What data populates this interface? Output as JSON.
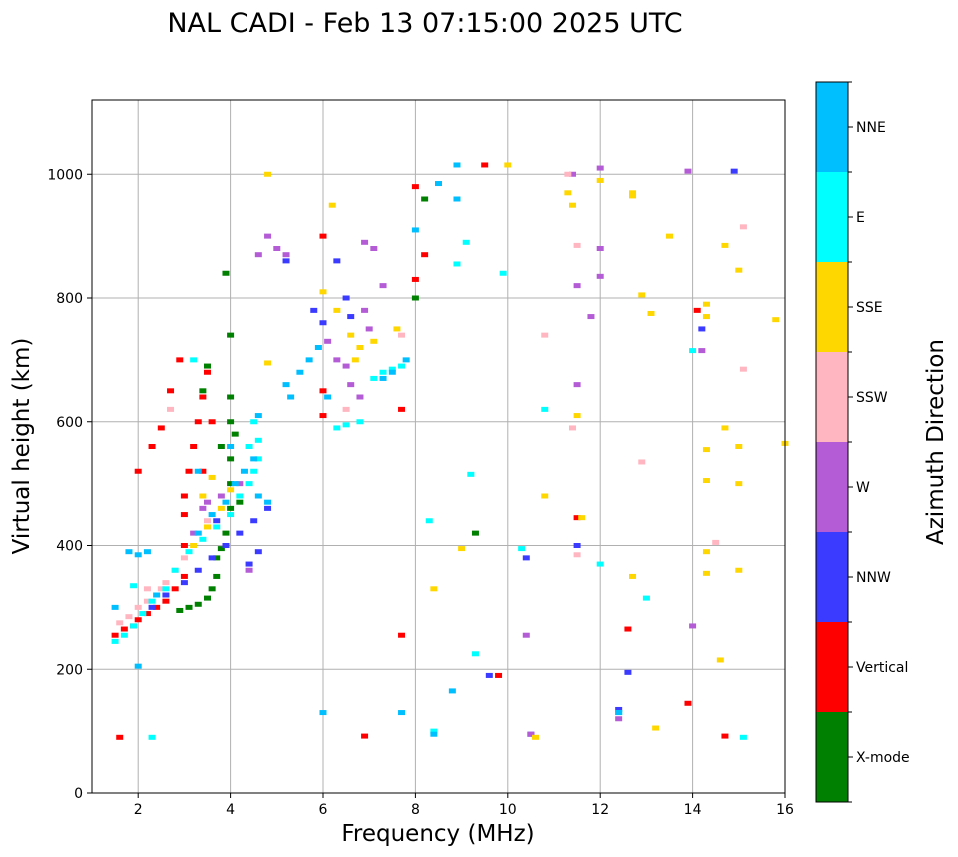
{
  "chart_data": {
    "type": "scatter",
    "title": "NAL CADI - Feb 13 07:15:00 2025 UTC",
    "xlabel": "Frequency (MHz)",
    "ylabel": "Virtual height (km)",
    "xlim": [
      1,
      16
    ],
    "ylim": [
      0,
      1120
    ],
    "xticks": [
      2,
      4,
      6,
      8,
      10,
      12,
      14,
      16
    ],
    "yticks": [
      0,
      200,
      400,
      600,
      800,
      1000
    ],
    "grid": true,
    "colorbar": {
      "label": "Azimuth Direction",
      "categories": [
        {
          "name": "X-mode",
          "color": "#008000"
        },
        {
          "name": "Vertical",
          "color": "#ff0000"
        },
        {
          "name": "NNW",
          "color": "#3b3bff"
        },
        {
          "name": "W",
          "color": "#b45cd6"
        },
        {
          "name": "SSW",
          "color": "#ffb6c1"
        },
        {
          "name": "SSE",
          "color": "#ffd700"
        },
        {
          "name": "E",
          "color": "#00ffff"
        },
        {
          "name": "NNE",
          "color": "#00bfff"
        }
      ]
    },
    "series": [
      {
        "name": "X-mode",
        "points": [
          [
            2.9,
            295
          ],
          [
            3.1,
            300
          ],
          [
            3.3,
            305
          ],
          [
            3.5,
            315
          ],
          [
            3.6,
            330
          ],
          [
            3.7,
            350
          ],
          [
            3.7,
            380
          ],
          [
            3.8,
            395
          ],
          [
            3.9,
            420
          ],
          [
            4.0,
            460
          ],
          [
            4.0,
            500
          ],
          [
            4.0,
            540
          ],
          [
            4.0,
            600
          ],
          [
            4.0,
            640
          ],
          [
            4.0,
            740
          ],
          [
            3.9,
            840
          ],
          [
            3.4,
            650
          ],
          [
            3.5,
            690
          ],
          [
            8.0,
            800
          ],
          [
            8.2,
            960
          ],
          [
            9.3,
            420
          ],
          [
            4.2,
            470
          ],
          [
            3.8,
            560
          ],
          [
            4.1,
            580
          ]
        ]
      },
      {
        "name": "Vertical",
        "points": [
          [
            1.5,
            255
          ],
          [
            1.7,
            265
          ],
          [
            1.9,
            270
          ],
          [
            2.0,
            280
          ],
          [
            2.2,
            290
          ],
          [
            2.4,
            300
          ],
          [
            2.6,
            310
          ],
          [
            2.8,
            330
          ],
          [
            3.0,
            350
          ],
          [
            3.0,
            400
          ],
          [
            3.0,
            450
          ],
          [
            3.0,
            480
          ],
          [
            3.1,
            520
          ],
          [
            3.2,
            560
          ],
          [
            3.3,
            600
          ],
          [
            3.4,
            640
          ],
          [
            3.5,
            680
          ],
          [
            2.3,
            560
          ],
          [
            2.5,
            590
          ],
          [
            2.7,
            650
          ],
          [
            2.9,
            700
          ],
          [
            1.6,
            90
          ],
          [
            6.0,
            610
          ],
          [
            6.0,
            650
          ],
          [
            6.0,
            900
          ],
          [
            7.7,
            255
          ],
          [
            7.7,
            620
          ],
          [
            8.0,
            830
          ],
          [
            8.0,
            980
          ],
          [
            8.2,
            870
          ],
          [
            9.5,
            1015
          ],
          [
            9.8,
            190
          ],
          [
            11.5,
            445
          ],
          [
            12.6,
            265
          ],
          [
            13.9,
            145
          ],
          [
            14.1,
            780
          ],
          [
            14.7,
            92
          ],
          [
            6.9,
            92
          ],
          [
            3.4,
            520
          ],
          [
            3.6,
            600
          ],
          [
            2.0,
            520
          ]
        ]
      },
      {
        "name": "NNW",
        "points": [
          [
            2.3,
            300
          ],
          [
            2.6,
            320
          ],
          [
            3.0,
            340
          ],
          [
            3.3,
            360
          ],
          [
            3.6,
            380
          ],
          [
            3.9,
            400
          ],
          [
            4.2,
            420
          ],
          [
            4.5,
            440
          ],
          [
            4.8,
            460
          ],
          [
            4.6,
            390
          ],
          [
            4.4,
            370
          ],
          [
            5.2,
            860
          ],
          [
            5.8,
            780
          ],
          [
            6.3,
            860
          ],
          [
            6.5,
            800
          ],
          [
            6.6,
            770
          ],
          [
            9.6,
            190
          ],
          [
            10.4,
            380
          ],
          [
            10.5,
            95
          ],
          [
            11.5,
            400
          ],
          [
            12.6,
            195
          ],
          [
            14.2,
            750
          ],
          [
            14.9,
            1005
          ],
          [
            12.4,
            135
          ],
          [
            6.0,
            760
          ],
          [
            3.7,
            440
          ]
        ]
      },
      {
        "name": "W",
        "points": [
          [
            3.4,
            460
          ],
          [
            3.8,
            480
          ],
          [
            4.2,
            500
          ],
          [
            4.4,
            360
          ],
          [
            4.6,
            870
          ],
          [
            4.8,
            900
          ],
          [
            5.0,
            880
          ],
          [
            5.2,
            870
          ],
          [
            6.1,
            730
          ],
          [
            6.3,
            700
          ],
          [
            6.5,
            690
          ],
          [
            6.6,
            660
          ],
          [
            6.8,
            640
          ],
          [
            6.9,
            780
          ],
          [
            7.0,
            750
          ],
          [
            7.3,
            820
          ],
          [
            11.4,
            1000
          ],
          [
            12.0,
            1010
          ],
          [
            12.0,
            880
          ],
          [
            12.0,
            835
          ],
          [
            11.5,
            820
          ],
          [
            11.8,
            770
          ],
          [
            11.5,
            660
          ],
          [
            14.0,
            270
          ],
          [
            14.2,
            715
          ],
          [
            13.9,
            1005
          ],
          [
            12.4,
            120
          ],
          [
            10.4,
            255
          ],
          [
            10.5,
            95
          ],
          [
            6.9,
            890
          ],
          [
            7.1,
            880
          ],
          [
            3.2,
            420
          ],
          [
            3.5,
            470
          ]
        ]
      },
      {
        "name": "SSW",
        "points": [
          [
            1.6,
            275
          ],
          [
            1.8,
            285
          ],
          [
            2.0,
            300
          ],
          [
            2.2,
            310
          ],
          [
            2.4,
            320
          ],
          [
            2.6,
            340
          ],
          [
            2.8,
            360
          ],
          [
            3.0,
            380
          ],
          [
            2.2,
            330
          ],
          [
            2.5,
            330
          ],
          [
            11.4,
            590
          ],
          [
            11.5,
            885
          ],
          [
            11.5,
            385
          ],
          [
            12.9,
            535
          ],
          [
            14.5,
            405
          ],
          [
            15.1,
            915
          ],
          [
            15.1,
            685
          ],
          [
            10.8,
            740
          ],
          [
            11.3,
            1000
          ],
          [
            6.5,
            620
          ],
          [
            7.7,
            740
          ],
          [
            3.5,
            440
          ],
          [
            2.7,
            620
          ]
        ]
      },
      {
        "name": "SSE",
        "points": [
          [
            3.2,
            400
          ],
          [
            3.5,
            430
          ],
          [
            3.8,
            460
          ],
          [
            4.0,
            490
          ],
          [
            3.6,
            510
          ],
          [
            3.4,
            480
          ],
          [
            4.8,
            1000
          ],
          [
            6.2,
            950
          ],
          [
            6.3,
            780
          ],
          [
            6.6,
            740
          ],
          [
            6.7,
            700
          ],
          [
            6.8,
            720
          ],
          [
            7.1,
            730
          ],
          [
            7.6,
            750
          ],
          [
            9.0,
            395
          ],
          [
            10.0,
            1015
          ],
          [
            10.8,
            480
          ],
          [
            11.3,
            970
          ],
          [
            11.4,
            950
          ],
          [
            11.5,
            610
          ],
          [
            11.6,
            445
          ],
          [
            12.0,
            990
          ],
          [
            12.7,
            970
          ],
          [
            12.7,
            965
          ],
          [
            12.7,
            350
          ],
          [
            12.9,
            805
          ],
          [
            13.1,
            775
          ],
          [
            13.2,
            105
          ],
          [
            13.5,
            900
          ],
          [
            14.3,
            770
          ],
          [
            14.3,
            790
          ],
          [
            14.3,
            555
          ],
          [
            14.3,
            505
          ],
          [
            14.3,
            390
          ],
          [
            14.3,
            355
          ],
          [
            14.6,
            215
          ],
          [
            14.7,
            885
          ],
          [
            14.7,
            590
          ],
          [
            15.0,
            845
          ],
          [
            15.0,
            560
          ],
          [
            15.0,
            500
          ],
          [
            15.0,
            360
          ],
          [
            15.8,
            765
          ],
          [
            16.0,
            565
          ],
          [
            10.6,
            90
          ],
          [
            8.4,
            330
          ],
          [
            6.0,
            810
          ],
          [
            4.8,
            695
          ]
        ]
      },
      {
        "name": "E",
        "points": [
          [
            1.5,
            245
          ],
          [
            1.7,
            255
          ],
          [
            1.9,
            270
          ],
          [
            2.1,
            290
          ],
          [
            2.3,
            310
          ],
          [
            2.6,
            330
          ],
          [
            2.8,
            360
          ],
          [
            3.1,
            390
          ],
          [
            3.4,
            410
          ],
          [
            3.7,
            430
          ],
          [
            4.0,
            450
          ],
          [
            4.2,
            480
          ],
          [
            4.4,
            500
          ],
          [
            4.5,
            520
          ],
          [
            4.6,
            540
          ],
          [
            4.6,
            570
          ],
          [
            4.5,
            600
          ],
          [
            6.3,
            590
          ],
          [
            6.5,
            595
          ],
          [
            6.8,
            600
          ],
          [
            7.1,
            670
          ],
          [
            7.3,
            680
          ],
          [
            7.5,
            685
          ],
          [
            7.7,
            690
          ],
          [
            8.3,
            440
          ],
          [
            8.4,
            100
          ],
          [
            8.9,
            855
          ],
          [
            9.1,
            890
          ],
          [
            9.2,
            515
          ],
          [
            9.3,
            225
          ],
          [
            9.9,
            840
          ],
          [
            10.3,
            395
          ],
          [
            10.8,
            620
          ],
          [
            12.0,
            370
          ],
          [
            12.4,
            130
          ],
          [
            13.0,
            315
          ],
          [
            14.0,
            715
          ],
          [
            15.1,
            90
          ],
          [
            2.3,
            90
          ],
          [
            1.9,
            335
          ],
          [
            3.2,
            700
          ],
          [
            4.4,
            560
          ]
        ]
      },
      {
        "name": "NNE",
        "points": [
          [
            1.5,
            300
          ],
          [
            1.8,
            390
          ],
          [
            2.0,
            385
          ],
          [
            2.2,
            390
          ],
          [
            2.4,
            320
          ],
          [
            3.3,
            420
          ],
          [
            3.6,
            450
          ],
          [
            3.9,
            470
          ],
          [
            4.1,
            500
          ],
          [
            4.3,
            520
          ],
          [
            4.5,
            540
          ],
          [
            4.6,
            480
          ],
          [
            4.8,
            470
          ],
          [
            5.2,
            660
          ],
          [
            5.3,
            640
          ],
          [
            5.5,
            680
          ],
          [
            5.7,
            700
          ],
          [
            5.9,
            720
          ],
          [
            7.3,
            670
          ],
          [
            7.5,
            680
          ],
          [
            7.8,
            700
          ],
          [
            8.0,
            910
          ],
          [
            8.5,
            985
          ],
          [
            8.9,
            1015
          ],
          [
            8.9,
            960
          ],
          [
            6.0,
            130
          ],
          [
            7.7,
            130
          ],
          [
            8.4,
            95
          ],
          [
            8.8,
            165
          ],
          [
            12.4,
            130
          ],
          [
            2.0,
            205
          ],
          [
            3.3,
            520
          ],
          [
            4.0,
            560
          ],
          [
            4.6,
            610
          ],
          [
            6.1,
            640
          ]
        ]
      }
    ]
  }
}
